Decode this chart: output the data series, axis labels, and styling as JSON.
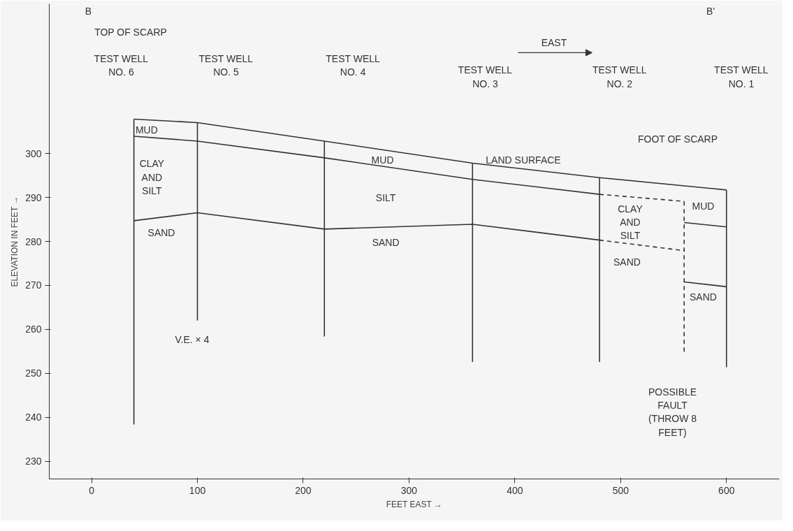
{
  "chart_data": {
    "type": "line",
    "xlabel": "FEET EAST →",
    "ylabel": "ELEVATION IN FEET →",
    "xlim": [
      -40,
      650
    ],
    "ylim": [
      226,
      334
    ],
    "xticks": [
      0,
      100,
      200,
      300,
      400,
      500,
      600
    ],
    "yticks": [
      230,
      240,
      250,
      260,
      270,
      280,
      290,
      300
    ],
    "grid": false,
    "marker": "none",
    "series": [
      {
        "x": [
          40,
          100,
          220,
          360,
          480,
          600
        ],
        "values": [
          307.8,
          307.0,
          302.8,
          297.8,
          294.5,
          291.7
        ],
        "color": "#333333",
        "line_style": "solid"
      },
      {
        "x": [
          40,
          100,
          220,
          360,
          480
        ],
        "values": [
          303.9,
          302.8,
          299.0,
          294.1,
          290.7
        ],
        "color": "#333333",
        "line_style": "solid"
      },
      {
        "x": [
          480,
          560
        ],
        "values": [
          290.7,
          289.1
        ],
        "color": "#333333",
        "line_style": "dashed"
      },
      {
        "x": [
          560,
          600
        ],
        "values": [
          284.3,
          283.3
        ],
        "color": "#333333",
        "line_style": "solid"
      },
      {
        "x": [
          40,
          100,
          220,
          360,
          480
        ],
        "values": [
          284.7,
          286.5,
          282.8,
          283.9,
          280.3
        ],
        "color": "#333333",
        "line_style": "solid"
      },
      {
        "x": [
          480,
          560
        ],
        "values": [
          280.3,
          277.9
        ],
        "color": "#333333",
        "line_style": "dashed"
      },
      {
        "x": [
          560,
          600
        ],
        "values": [
          270.8,
          269.7
        ],
        "color": "#333333",
        "line_style": "solid"
      },
      {
        "x": [
          40,
          40
        ],
        "values": [
          307.8,
          238.4
        ],
        "color": "#333333",
        "line_style": "solid"
      },
      {
        "x": [
          100,
          100
        ],
        "values": [
          307.0,
          262.0
        ],
        "color": "#333333",
        "line_style": "solid"
      },
      {
        "x": [
          220,
          220
        ],
        "values": [
          302.8,
          258.4
        ],
        "color": "#333333",
        "line_style": "solid"
      },
      {
        "x": [
          360,
          360
        ],
        "values": [
          297.8,
          252.6
        ],
        "color": "#333333",
        "line_style": "solid"
      },
      {
        "x": [
          480,
          480
        ],
        "values": [
          294.5,
          252.6
        ],
        "color": "#333333",
        "line_style": "solid"
      },
      {
        "x": [
          600,
          600
        ],
        "values": [
          291.7,
          251.4
        ],
        "color": "#333333",
        "line_style": "solid"
      },
      {
        "x": [
          560,
          560
        ],
        "values": [
          289.1,
          254.7
        ],
        "color": "#333333",
        "line_style": "dashed"
      }
    ],
    "annotations": [
      "B",
      "B'",
      "TOP OF SCARP",
      "EAST",
      "TEST WELL\nNO. 6",
      "TEST WELL\nNO. 5",
      "TEST WELL\nNO. 4",
      "TEST WELL\nNO. 3",
      "TEST WELL\nNO. 2",
      "TEST WELL\nNO. 1",
      "FOOT OF SCARP",
      "LAND SURFACE",
      "MUD",
      "CLAY\nAND\nSILT",
      "SAND",
      "MUD",
      "SILT",
      "SAND",
      "CLAY\nAND\nSILT",
      "SAND",
      "MUD",
      "SAND",
      "V.E. × 4",
      "POSSIBLE\nFAULT\n(THROW 8\nFEET)"
    ]
  }
}
